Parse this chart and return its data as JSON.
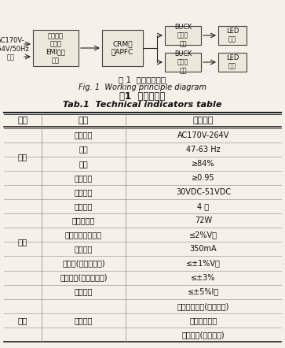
{
  "fig_title_cn": "图 1  工作原理框图",
  "fig_title_en": "Fig. 1  Working principle diagram",
  "table_title_cn": "表1  技术指标表",
  "table_title_en": "Tab.1  Technical indicators table",
  "table_headers": [
    "项目",
    "特性",
    "指标要求"
  ],
  "table_rows": [
    [
      "",
      "输入电压",
      "AC170V-264V"
    ],
    [
      "输入",
      "频率",
      "47-63 Hz"
    ],
    [
      "",
      "效率",
      "≥84%"
    ],
    [
      "",
      "功率因数",
      "≥0.95"
    ],
    [
      "",
      "输出电压",
      "30VDC-51VDC"
    ],
    [
      "",
      "输出路数",
      "4 路"
    ],
    [
      "",
      "输出总功率",
      "72W"
    ],
    [
      "输出",
      "输出电压纹波噪声",
      "≤2%V。"
    ],
    [
      "",
      "输出电流",
      "350mA"
    ],
    [
      "",
      "源效应(电压调整率)",
      "≤±1%V。"
    ],
    [
      "",
      "负载效应(电流调整率)",
      "≤±3%"
    ],
    [
      "",
      "整流精度",
      "≤±5%I。"
    ],
    [
      "",
      "",
      "输出过压保护(设计保证)"
    ],
    [
      "保护",
      "保护功能",
      "输出短路保护"
    ],
    [
      "",
      "",
      "过温保护(设计保护)"
    ]
  ],
  "group_labels": [
    {
      "label": "输入",
      "rows": [
        0,
        3
      ]
    },
    {
      "label": "输出",
      "rows": [
        4,
        11
      ]
    },
    {
      "label": "保护",
      "rows": [
        12,
        14
      ]
    }
  ],
  "bg_color": "#f5f0e8",
  "box_facecolor": "#ede8dc",
  "box_edgecolor": "#444444",
  "line_color_heavy": "#222222",
  "line_color_light": "#888888",
  "text_color": "#111111",
  "input_text": "AC170V-\n264V/50Hz\n输入",
  "filter_box_text": "防浪涌、\n防雷、\nEMI滤波\n电路",
  "apfc_box_text": "CRM模\n式APFC",
  "buck_box_text": "BUCK\n恒流源\n电路",
  "led_box_text": "LED\n负载"
}
